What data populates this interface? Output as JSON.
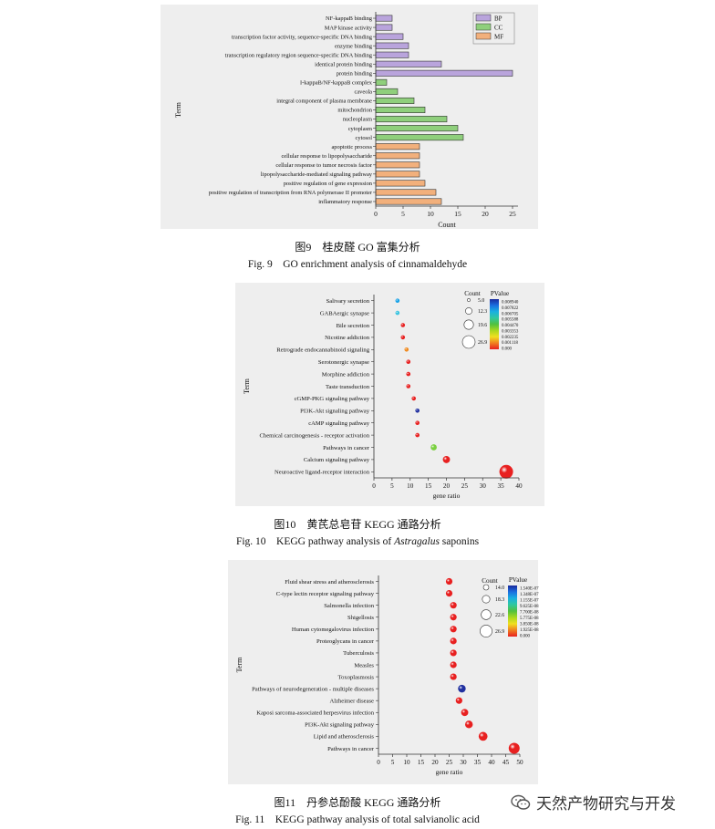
{
  "fig9": {
    "caption_cn": "图9　桂皮醛 GO 富集分析",
    "caption_en": "Fig. 9　GO enrichment analysis of cinnamaldehyde"
  },
  "fig10": {
    "caption_cn": "图10　黄芪总皂苷 KEGG 通路分析",
    "caption_en_pre": "Fig. 10　KEGG pathway analysis of ",
    "caption_en_italic": "Astragalus",
    "caption_en_post": " saponins"
  },
  "fig11": {
    "caption_cn": "图11　丹参总酚酸 KEGG 通路分析",
    "caption_en": "Fig. 11　KEGG pathway analysis of total salvianolic acid"
  },
  "watermark": {
    "text": "天然产物研究与开发"
  },
  "chart_data": [
    {
      "type": "bar",
      "orientation": "horizontal",
      "xlabel": "Count",
      "ylabel": "Term",
      "xlim": [
        0,
        26
      ],
      "xticks": [
        0,
        5,
        10,
        15,
        20,
        25
      ],
      "legend": {
        "position": "top-right",
        "entries": [
          "BP",
          "CC",
          "MF"
        ]
      },
      "colors": {
        "BP": "#b9a4dc",
        "CC": "#8fcf7c",
        "MF": "#f2b07c"
      },
      "categories": [
        "NF-kappaB binding",
        "MAP kinase activity",
        "transcription factor activity, sequence-specific DNA binding",
        "enzyme binding",
        "transcription regulatory region sequence-specific DNA binding",
        "identical protein binding",
        "protein binding",
        "I-kappaB/NF-kappaB complex",
        "caveola",
        "integral component of plasma membrane",
        "mitochondrion",
        "nucleoplasm",
        "cytoplasm",
        "cytosol",
        "apoptotic process",
        "cellular response to lipopolysaccharide",
        "cellular response to tumor necrosis factor",
        "lipopolysaccharide-mediated signaling pathway",
        "positive regulation of gene expression",
        "positive regulation of transcription from RNA polymerase II promoter",
        "inflammatory response"
      ],
      "values": [
        3,
        3,
        5,
        6,
        6,
        12,
        25,
        2,
        4,
        7,
        9,
        13,
        15,
        16,
        8,
        8,
        8,
        8,
        9,
        11,
        12
      ],
      "groups": [
        "BP",
        "BP",
        "BP",
        "BP",
        "BP",
        "BP",
        "BP",
        "CC",
        "CC",
        "CC",
        "CC",
        "CC",
        "CC",
        "CC",
        "MF",
        "MF",
        "MF",
        "MF",
        "MF",
        "MF",
        "MF"
      ]
    },
    {
      "type": "scatter",
      "xlabel": "gene ratio",
      "ylabel": "Term",
      "xlim": [
        0,
        40
      ],
      "xticks": [
        0,
        5,
        10,
        15,
        20,
        25,
        30,
        35,
        40
      ],
      "size_legend": {
        "title": "Count",
        "values": [
          "5.0",
          "12.3",
          "19.6",
          "26.9"
        ]
      },
      "color_legend": {
        "title": "PValue",
        "values": [
          "0.008940",
          "0.007822",
          "0.006705",
          "0.005588",
          "0.004470",
          "0.003353",
          "0.002235",
          "0.001118",
          "0.000"
        ]
      },
      "categories": [
        "Salivary secretion",
        "GABAergic synapse",
        "Bile secretion",
        "Nicotine addiction",
        "Retrograde endocannabinoid signaling",
        "Serotonergic synapse",
        "Morphine addiction",
        "Taste transduction",
        "cGMP-PKG signaling pathway",
        "PI3K-Akt signaling pathway",
        "cAMP signaling pathway",
        "Chemical carcinogenesis - receptor activation",
        "Pathways in cancer",
        "Calcium signaling pathway",
        "Neuroactive ligand-receptor interaction"
      ],
      "x": [
        6.5,
        6.5,
        8,
        8,
        9,
        9.5,
        9.5,
        9.5,
        11,
        12,
        12,
        12,
        16.5,
        20,
        36.5
      ],
      "count": [
        5,
        5,
        5,
        5,
        5,
        5,
        5,
        5,
        5,
        5,
        5,
        5,
        8,
        10,
        26.9
      ],
      "colors": [
        "#1aa3e8",
        "#3cc4e0",
        "#e82020",
        "#e82020",
        "#f08a20",
        "#e82020",
        "#e82020",
        "#e82020",
        "#e82020",
        "#2030a0",
        "#e82020",
        "#e82020",
        "#7ad040",
        "#e82020",
        "#e82020"
      ]
    },
    {
      "type": "scatter",
      "xlabel": "gene ratio",
      "ylabel": "Term",
      "xlim": [
        0,
        50
      ],
      "xticks": [
        0,
        5,
        10,
        15,
        20,
        25,
        30,
        35,
        40,
        45,
        50
      ],
      "size_legend": {
        "title": "Count",
        "values": [
          "14.0",
          "18.3",
          "22.6",
          "26.9"
        ]
      },
      "color_legend": {
        "title": "PValue",
        "values": [
          "1.540E-07",
          "1.348E-07",
          "1.155E-07",
          "9.625E-08",
          "7.700E-08",
          "5.775E-08",
          "3.850E-08",
          "1.925E-08",
          "0.000"
        ]
      },
      "categories": [
        "Fluid shear stress and atherosclerosis",
        "C-type lectin receptor signaling pathway",
        "Salmonella infection",
        "Shigellosis",
        "Human cytomegalovirus infection",
        "Proteoglycans in cancer",
        "Tuberculosis",
        "Measles",
        "Toxoplasmosis",
        "Pathways of neurodegeneration - multiple diseases",
        "Alzheimer disease",
        "Kaposi sarcoma-associated herpesvirus infection",
        "PI3K-Akt signaling pathway",
        "Lipid and atherosclerosis",
        "Pathways in cancer"
      ],
      "x": [
        25,
        25,
        26.5,
        26.5,
        26.5,
        26.5,
        26.5,
        26.5,
        26.5,
        29.5,
        28.5,
        30.5,
        32,
        37,
        48
      ],
      "count": [
        14,
        14,
        14,
        14,
        14,
        14,
        14,
        14,
        14,
        16,
        14,
        15,
        16,
        18.3,
        22.6
      ],
      "colors": [
        "#e82020",
        "#e82020",
        "#e82020",
        "#e82020",
        "#e82020",
        "#e82020",
        "#e82020",
        "#e82020",
        "#e82020",
        "#2030a0",
        "#e82020",
        "#e82020",
        "#e82020",
        "#e82020",
        "#e82020"
      ]
    }
  ]
}
